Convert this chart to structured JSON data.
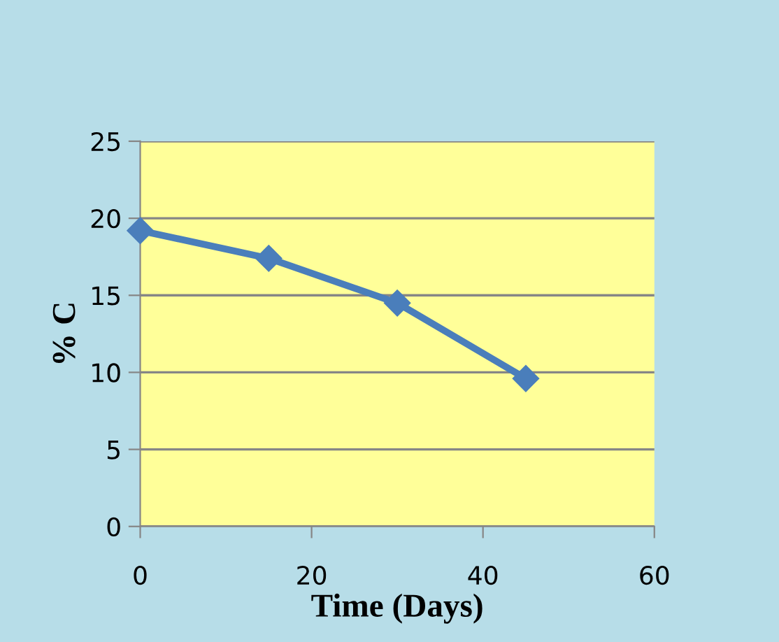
{
  "chart_data": {
    "type": "line",
    "xlabel": "Time (Days)",
    "ylabel": "% C",
    "x": [
      0,
      15,
      30,
      45
    ],
    "series": [
      {
        "color": "#4a7ebb",
        "values": [
          19.2,
          17.4,
          14.5,
          9.6
        ]
      }
    ],
    "xlim": [
      0,
      60
    ],
    "xticks": [
      0,
      20,
      40,
      60
    ],
    "ylim": [
      0,
      25
    ],
    "yticks": [
      0,
      5,
      10,
      15,
      20,
      25
    ],
    "grid": "y",
    "marker": "diamond",
    "line_style": "solid",
    "legend": false
  }
}
